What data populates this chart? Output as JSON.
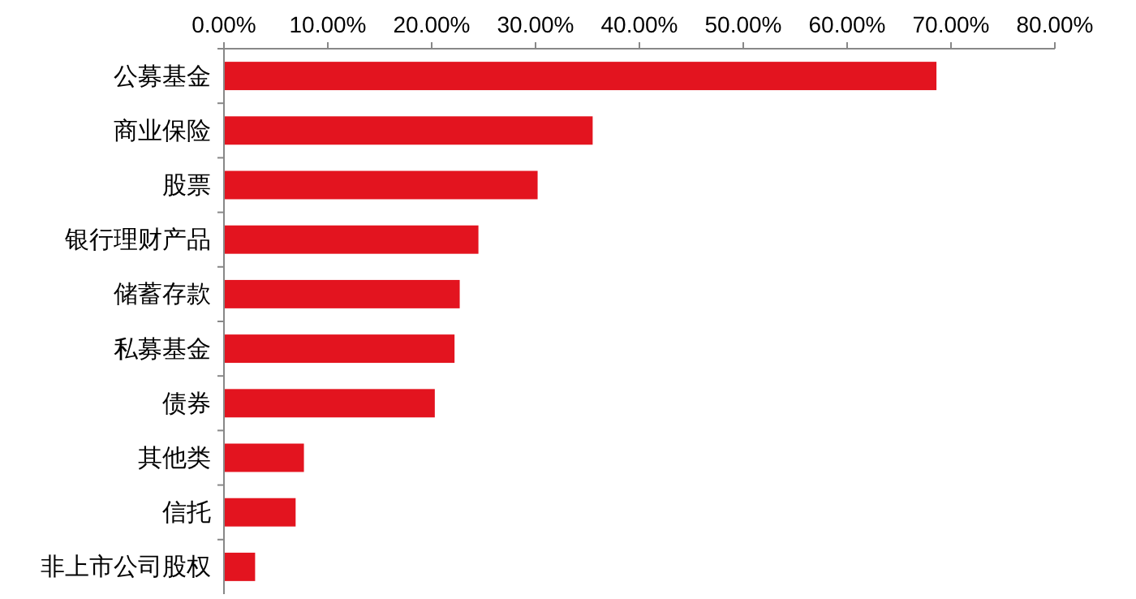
{
  "chart_data": {
    "type": "bar",
    "orientation": "horizontal",
    "categories": [
      "公募基金",
      "商业保险",
      "股票",
      "银行理财产品",
      "储蓄存款",
      "私募基金",
      "债券",
      "其他类",
      "信托",
      "非上市公司股权"
    ],
    "values": [
      68.6,
      35.5,
      30.2,
      24.5,
      22.7,
      22.2,
      20.3,
      7.7,
      6.9,
      3.0
    ],
    "color": "#e3141f",
    "xlim": [
      0,
      80
    ],
    "xticks": [
      {
        "value": 0,
        "label": "0.00%"
      },
      {
        "value": 10,
        "label": "10.00%"
      },
      {
        "value": 20,
        "label": "20.00%"
      },
      {
        "value": 30,
        "label": "30.00%"
      },
      {
        "value": 40,
        "label": "40.00%"
      },
      {
        "value": 50,
        "label": "50.00%"
      },
      {
        "value": 60,
        "label": "60.00%"
      },
      {
        "value": 70,
        "label": "70.00%"
      },
      {
        "value": 80,
        "label": "80.00%"
      }
    ],
    "grid": false
  }
}
